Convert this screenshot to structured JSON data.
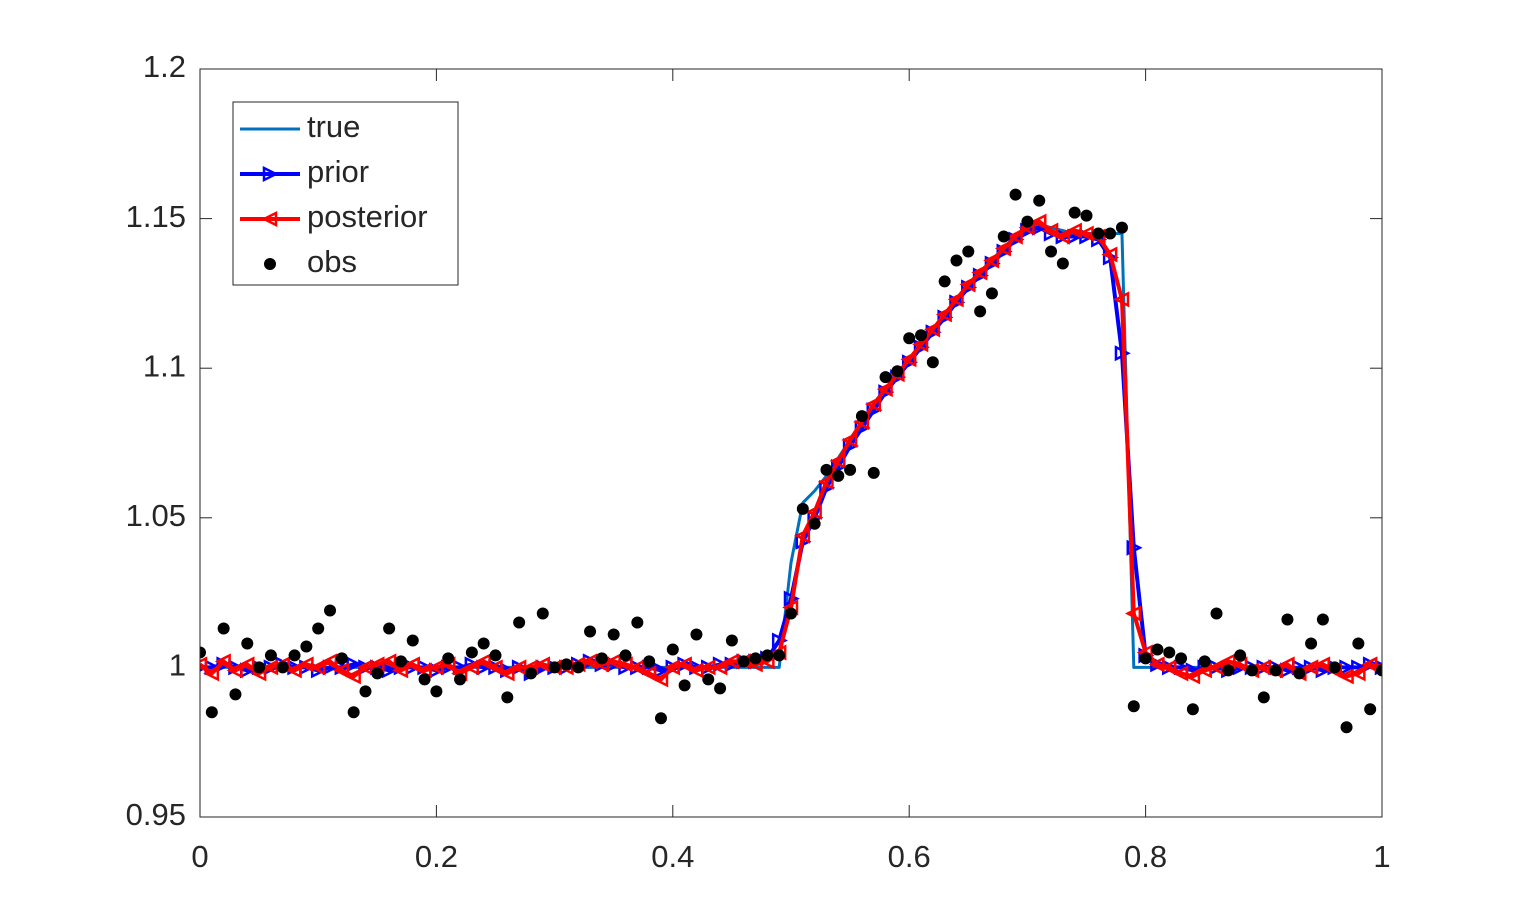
{
  "chart_data": {
    "type": "line",
    "x": [
      0,
      0.01,
      0.02,
      0.03,
      0.04,
      0.05,
      0.06,
      0.07,
      0.08,
      0.09,
      0.1,
      0.11,
      0.12,
      0.13,
      0.14,
      0.15,
      0.16,
      0.17,
      0.18,
      0.19,
      0.2,
      0.21,
      0.22,
      0.23,
      0.24,
      0.25,
      0.26,
      0.27,
      0.28,
      0.29,
      0.3,
      0.31,
      0.32,
      0.33,
      0.34,
      0.35,
      0.36,
      0.37,
      0.38,
      0.39,
      0.4,
      0.41,
      0.42,
      0.43,
      0.44,
      0.45,
      0.46,
      0.47,
      0.48,
      0.49,
      0.5,
      0.51,
      0.52,
      0.53,
      0.54,
      0.55,
      0.56,
      0.57,
      0.58,
      0.59,
      0.6,
      0.61,
      0.62,
      0.63,
      0.64,
      0.65,
      0.66,
      0.67,
      0.68,
      0.69,
      0.7,
      0.71,
      0.72,
      0.73,
      0.74,
      0.75,
      0.76,
      0.77,
      0.78,
      0.79,
      0.8,
      0.81,
      0.82,
      0.83,
      0.84,
      0.85,
      0.86,
      0.87,
      0.88,
      0.89,
      0.9,
      0.91,
      0.92,
      0.93,
      0.94,
      0.95,
      0.96,
      0.97,
      0.98,
      0.99,
      1
    ],
    "series": [
      {
        "name": "true",
        "color": "#0072BD",
        "line": true,
        "marker": "none",
        "values": [
          1,
          1,
          1,
          1,
          1,
          1,
          1,
          1,
          1,
          1,
          1,
          1,
          1,
          1,
          1,
          1,
          1,
          1,
          1,
          1,
          1,
          1,
          1,
          1,
          1,
          1,
          1,
          1,
          1,
          1,
          1,
          1,
          1,
          1,
          1,
          1,
          1,
          1,
          1,
          1,
          1,
          1,
          1,
          1,
          1,
          1,
          1,
          1,
          1,
          1,
          1.035,
          1.055,
          1.059,
          1.064,
          1.07,
          1.076,
          1.082,
          1.087,
          1.093,
          1.098,
          1.103,
          1.108,
          1.113,
          1.118,
          1.123,
          1.128,
          1.132,
          1.136,
          1.14,
          1.143,
          1.146,
          1.148,
          1.147,
          1.146,
          1.145,
          1.145,
          1.145,
          1.145,
          1.145,
          1,
          1,
          1,
          1,
          1,
          1,
          1,
          1,
          1,
          1,
          1,
          1,
          1,
          1,
          1,
          1,
          1,
          1,
          1,
          1,
          1,
          1
        ]
      },
      {
        "name": "prior",
        "color": "#0000FF",
        "line": true,
        "marker": ">",
        "values": [
          1.0,
          1.0,
          1.001,
          1.0,
          0.999,
          1.0,
          1.0,
          1.001,
          1.0,
          1.0,
          0.999,
          1.0,
          1.0,
          1.001,
          1.0,
          1.0,
          0.999,
          1.0,
          1.0,
          1.0,
          0.999,
          1.0,
          1.0,
          1.001,
          1.0,
          1.0,
          0.999,
          1.0,
          0.998,
          1.0,
          1.0,
          1.0,
          1.001,
          1.002,
          1.001,
          1.001,
          1.0,
          1.0,
          1.0,
          0.999,
          1.0,
          1.001,
          1.0,
          1.0,
          1.001,
          1.001,
          1.002,
          1.002,
          1.003,
          1.009,
          1.023,
          1.042,
          1.05,
          1.06,
          1.067,
          1.074,
          1.08,
          1.086,
          1.092,
          1.097,
          1.102,
          1.107,
          1.112,
          1.117,
          1.122,
          1.127,
          1.131,
          1.135,
          1.139,
          1.143,
          1.146,
          1.147,
          1.145,
          1.144,
          1.144,
          1.144,
          1.143,
          1.137,
          1.105,
          1.04,
          1.004,
          1.001,
          1.0,
          1.0,
          0.999,
          1.0,
          1.0,
          0.999,
          1.0,
          1.0,
          1.0,
          1.0,
          0.999,
          1.0,
          1.0,
          0.999,
          1.0,
          1.0,
          1.0,
          1.001,
          1.0
        ]
      },
      {
        "name": "posterior",
        "color": "#FF0000",
        "line": true,
        "marker": "<",
        "values": [
          1.001,
          0.998,
          1.002,
          0.999,
          1.001,
          0.998,
          1.0,
          1.001,
          0.999,
          1.001,
          1.0,
          1.002,
          0.999,
          0.997,
          1.0,
          1.001,
          1.002,
          0.999,
          1.001,
          0.999,
          1.0,
          1.001,
          0.998,
          1.0,
          1.002,
          1.0,
          0.998,
          1.0,
          1.0,
          1.001,
          1.0,
          1.0,
          1.001,
          1.002,
          1.001,
          1.002,
          1.001,
          1.0,
          0.998,
          0.996,
          1.0,
          1.001,
          0.999,
          1.0,
          1.0,
          1.002,
          1.002,
          1.001,
          1.002,
          1.005,
          1.02,
          1.044,
          1.052,
          1.062,
          1.069,
          1.076,
          1.082,
          1.088,
          1.093,
          1.098,
          1.103,
          1.108,
          1.113,
          1.118,
          1.123,
          1.128,
          1.132,
          1.136,
          1.14,
          1.144,
          1.147,
          1.149,
          1.146,
          1.144,
          1.146,
          1.145,
          1.144,
          1.138,
          1.123,
          1.018,
          1.005,
          1.001,
          1.0,
          0.998,
          0.997,
          0.999,
          1.0,
          1.002,
          1.001,
          0.999,
          1.0,
          0.999,
          1.001,
          0.998,
          1.0,
          1.001,
          0.999,
          0.997,
          0.998,
          1.001,
          1.0
        ]
      },
      {
        "name": "obs",
        "color": "#000000",
        "line": false,
        "marker": ".",
        "values": [
          1.005,
          0.985,
          1.013,
          0.991,
          1.008,
          1.0,
          1.004,
          1.0,
          1.004,
          1.007,
          1.013,
          1.019,
          1.003,
          0.985,
          0.992,
          0.998,
          1.013,
          1.002,
          1.009,
          0.996,
          0.992,
          1.003,
          0.996,
          1.005,
          1.008,
          1.004,
          0.99,
          1.015,
          0.998,
          1.018,
          1.0,
          1.001,
          1.0,
          1.012,
          1.003,
          1.011,
          1.004,
          1.015,
          1.002,
          0.983,
          1.006,
          0.994,
          1.011,
          0.996,
          0.993,
          1.009,
          1.002,
          1.003,
          1.004,
          1.004,
          1.018,
          1.053,
          1.048,
          1.066,
          1.064,
          1.066,
          1.084,
          1.065,
          1.097,
          1.099,
          1.11,
          1.111,
          1.102,
          1.129,
          1.136,
          1.139,
          1.119,
          1.125,
          1.144,
          1.158,
          1.149,
          1.156,
          1.139,
          1.135,
          1.152,
          1.151,
          1.145,
          1.145,
          1.147,
          0.987,
          1.003,
          1.006,
          1.005,
          1.003,
          0.986,
          1.002,
          1.018,
          0.999,
          1.004,
          0.999,
          0.99,
          0.999,
          1.016,
          0.998,
          1.008,
          1.016,
          1.0,
          0.98,
          1.008,
          0.986,
          0.999
        ]
      }
    ],
    "xlim": [
      0,
      1
    ],
    "xticks": [
      0,
      0.2,
      0.4,
      0.6,
      0.8,
      1
    ],
    "ylim": [
      0.95,
      1.2
    ],
    "yticks": [
      0.95,
      1,
      1.05,
      1.1,
      1.15,
      1.2
    ],
    "grid": false,
    "legend": "top-left"
  }
}
